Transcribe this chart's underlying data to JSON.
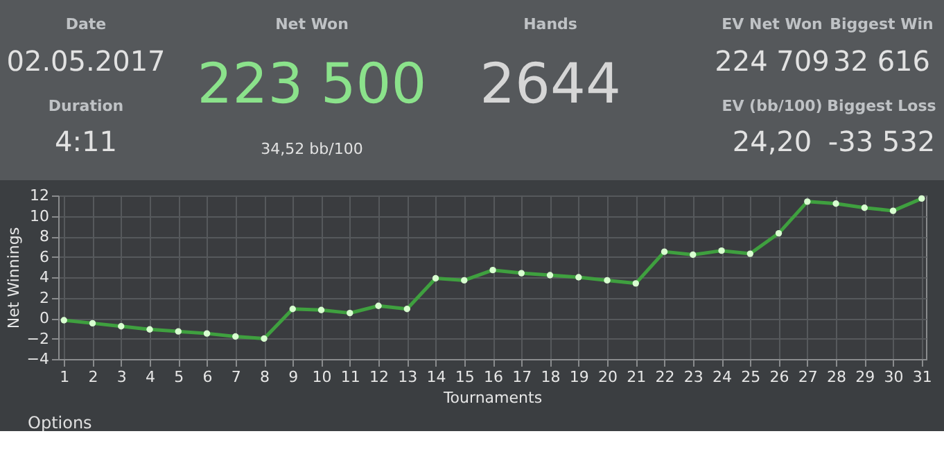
{
  "chart_data": [
    {
      "type": "other",
      "annotations": [
        "Date",
        "02.05.2017",
        "Duration",
        "4:11",
        "Net Won",
        "223 500",
        "34,52 bb/100",
        "Hands",
        "2644",
        "EV Net Won",
        "224 709",
        "Biggest Win",
        "32 616",
        "EV (bb/100)",
        "24,20",
        "Biggest Loss",
        "-33 532"
      ]
    },
    {
      "type": "line",
      "xlabel": "Tournaments",
      "ylabel": "Net Winnings",
      "x": [
        1,
        2,
        3,
        4,
        5,
        6,
        7,
        8,
        9,
        10,
        11,
        12,
        13,
        14,
        15,
        16,
        17,
        18,
        19,
        20,
        21,
        22,
        23,
        24,
        25,
        26,
        27,
        28,
        29,
        30,
        31
      ],
      "series": [
        {
          "color": "#3fa03f",
          "values": [
            -0.2,
            -0.5,
            -0.8,
            -1.1,
            -1.3,
            -1.5,
            -1.8,
            -2.0,
            0.9,
            0.8,
            0.5,
            1.2,
            0.9,
            3.9,
            3.7,
            4.7,
            4.4,
            4.2,
            4.0,
            3.7,
            3.4,
            6.5,
            6.2,
            6.6,
            6.3,
            8.3,
            11.4,
            11.2,
            10.8,
            10.5,
            11.7
          ]
        }
      ],
      "xlim": [
        0.8,
        31.15
      ],
      "xticks": [
        1,
        2,
        3,
        4,
        5,
        6,
        7,
        8,
        9,
        10,
        11,
        12,
        13,
        14,
        15,
        16,
        17,
        18,
        19,
        20,
        21,
        22,
        23,
        24,
        25,
        26,
        27,
        28,
        29,
        30,
        31
      ],
      "ylim": [
        -4,
        12
      ],
      "yticks": [
        -4,
        -2,
        0,
        2,
        4,
        6,
        8,
        10,
        12
      ],
      "grid": true,
      "marker": "circle",
      "line_style": "solid",
      "annotations": [
        "Options"
      ]
    }
  ]
}
